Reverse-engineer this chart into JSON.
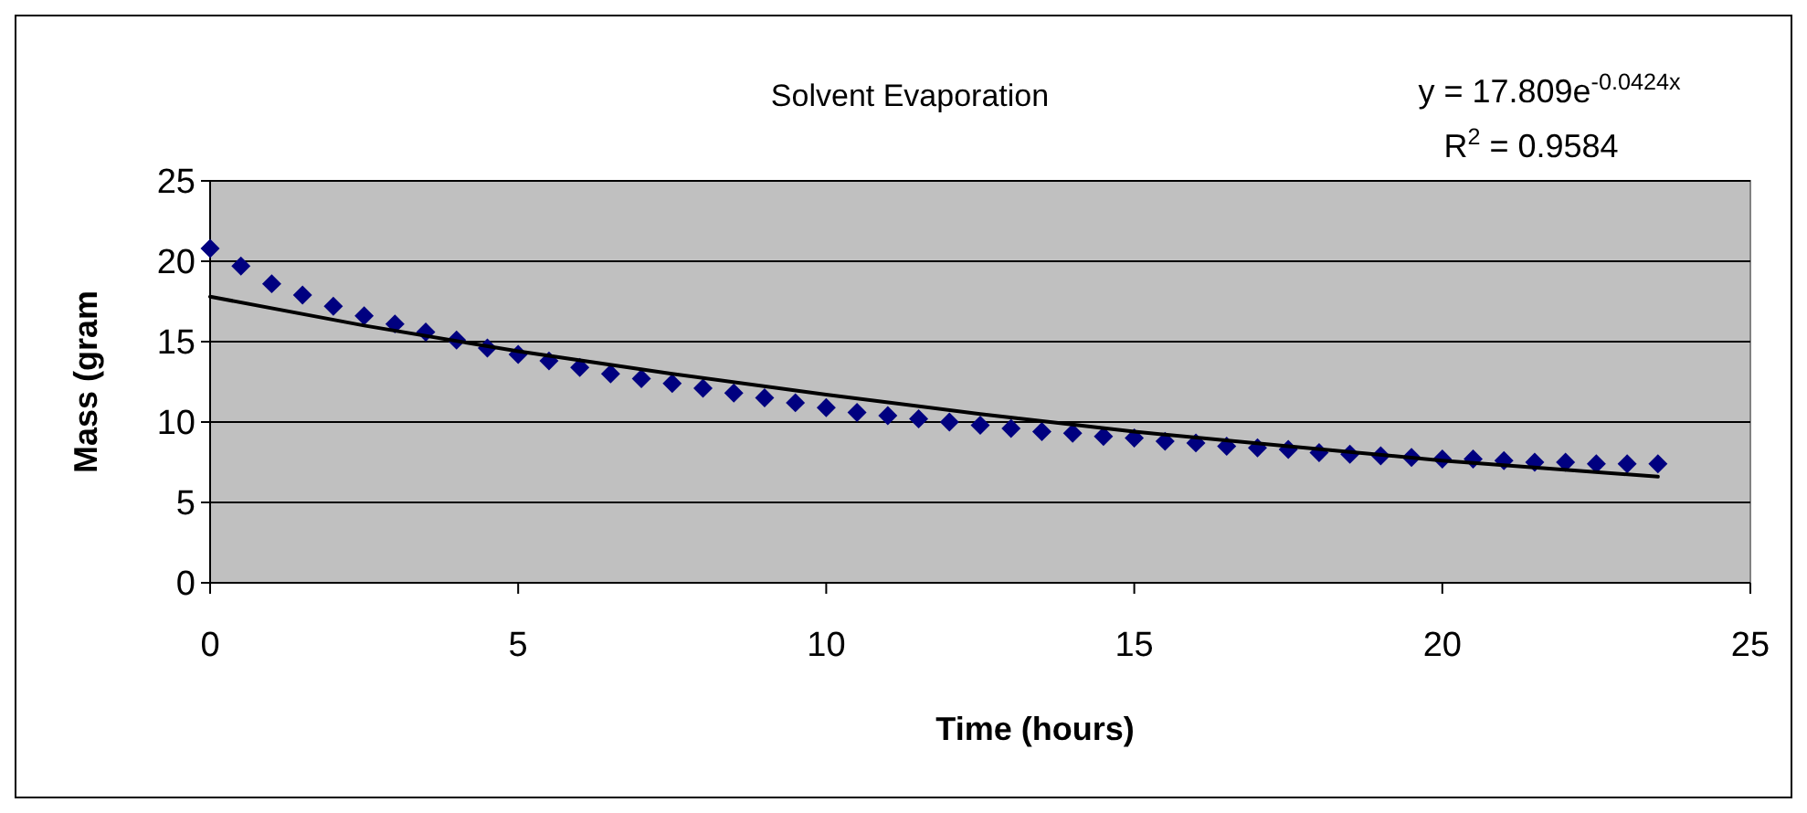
{
  "chart_data": {
    "type": "scatter",
    "title": "Solvent Evaporation",
    "xlabel": "Time (hours)",
    "ylabel": "Mass (gram",
    "annotations": [
      "y = 17.809e$^{-0.0424x}$",
      "R$^{2}$ = 0.9584"
    ],
    "xlim": [
      0,
      25
    ],
    "xticks": [
      0,
      5,
      10,
      15,
      20,
      25
    ],
    "ylim": [
      0,
      25
    ],
    "yticks": [
      0,
      5,
      10,
      15,
      20,
      25
    ],
    "grid": "y",
    "series": [
      {
        "marker": "diamond",
        "color": "#000080",
        "x": [
          0,
          0.5,
          1,
          1.5,
          2,
          2.5,
          3,
          3.5,
          4,
          4.5,
          5,
          5.5,
          6,
          6.5,
          7,
          7.5,
          8,
          8.5,
          9,
          9.5,
          10,
          10.5,
          11,
          11.5,
          12,
          12.5,
          13,
          13.5,
          14,
          14.5,
          15,
          15.5,
          16,
          16.5,
          17,
          17.5,
          18,
          18.5,
          19,
          19.5,
          20,
          20.5,
          21,
          21.5,
          22,
          22.5,
          23,
          23.5
        ],
        "values": [
          20.8,
          19.7,
          18.6,
          17.9,
          17.2,
          16.6,
          16.1,
          15.6,
          15.1,
          14.6,
          14.2,
          13.8,
          13.4,
          13.0,
          12.7,
          12.4,
          12.1,
          11.8,
          11.5,
          11.2,
          10.9,
          10.6,
          10.4,
          10.2,
          10.0,
          9.8,
          9.6,
          9.4,
          9.3,
          9.1,
          9.0,
          8.8,
          8.7,
          8.5,
          8.4,
          8.3,
          8.1,
          8.0,
          7.9,
          7.8,
          7.7,
          7.7,
          7.6,
          7.5,
          7.5,
          7.4,
          7.4,
          7.4
        ]
      },
      {
        "type": "line",
        "color": "#000000",
        "line_style": "solid",
        "x": [
          0,
          2.5,
          5,
          7.5,
          10,
          12.5,
          15,
          17.5,
          20,
          23.5
        ],
        "values": [
          17.8,
          16.0,
          14.4,
          13.0,
          11.7,
          10.5,
          9.4,
          8.5,
          7.6,
          6.6
        ]
      }
    ]
  }
}
